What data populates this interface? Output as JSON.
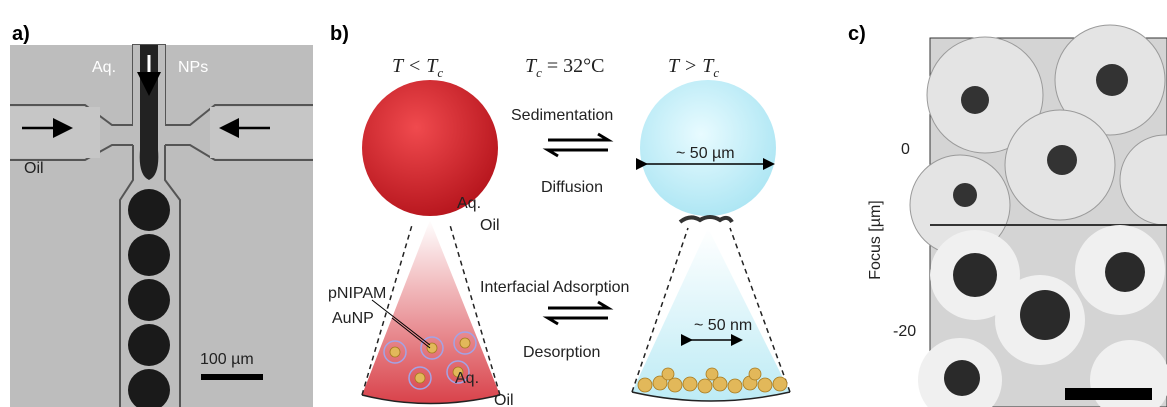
{
  "panel_a": {
    "label": "a)",
    "aq": "Aq.",
    "nps": "NPs",
    "oil": "Oil",
    "scale_bar": "100 µm"
  },
  "panel_b": {
    "label": "b)",
    "cond_low": {
      "a": "T < T",
      "sub": "c"
    },
    "cond_mid": {
      "a": "T",
      "sub": "c",
      "b": " = 32°C"
    },
    "cond_high": {
      "a": "T > T",
      "sub": "c"
    },
    "sedimentation": "Sedimentation",
    "diffusion": "Diffusion",
    "size_um": "~ 50 µm",
    "aq_top": "Aq.",
    "oil_top": "Oil",
    "pnipam": "pNIPAM",
    "aunp": "AuNP",
    "adsorption": "Interfacial Adsorption",
    "size_nm": "~ 50 nm",
    "desorption": "Desorption",
    "aq_bottom": "Aq.",
    "oil_bottom": "Oil"
  },
  "panel_c": {
    "label": "c)",
    "focus_0": "0",
    "focus_20": "-20",
    "axis": "Focus [µm]"
  }
}
